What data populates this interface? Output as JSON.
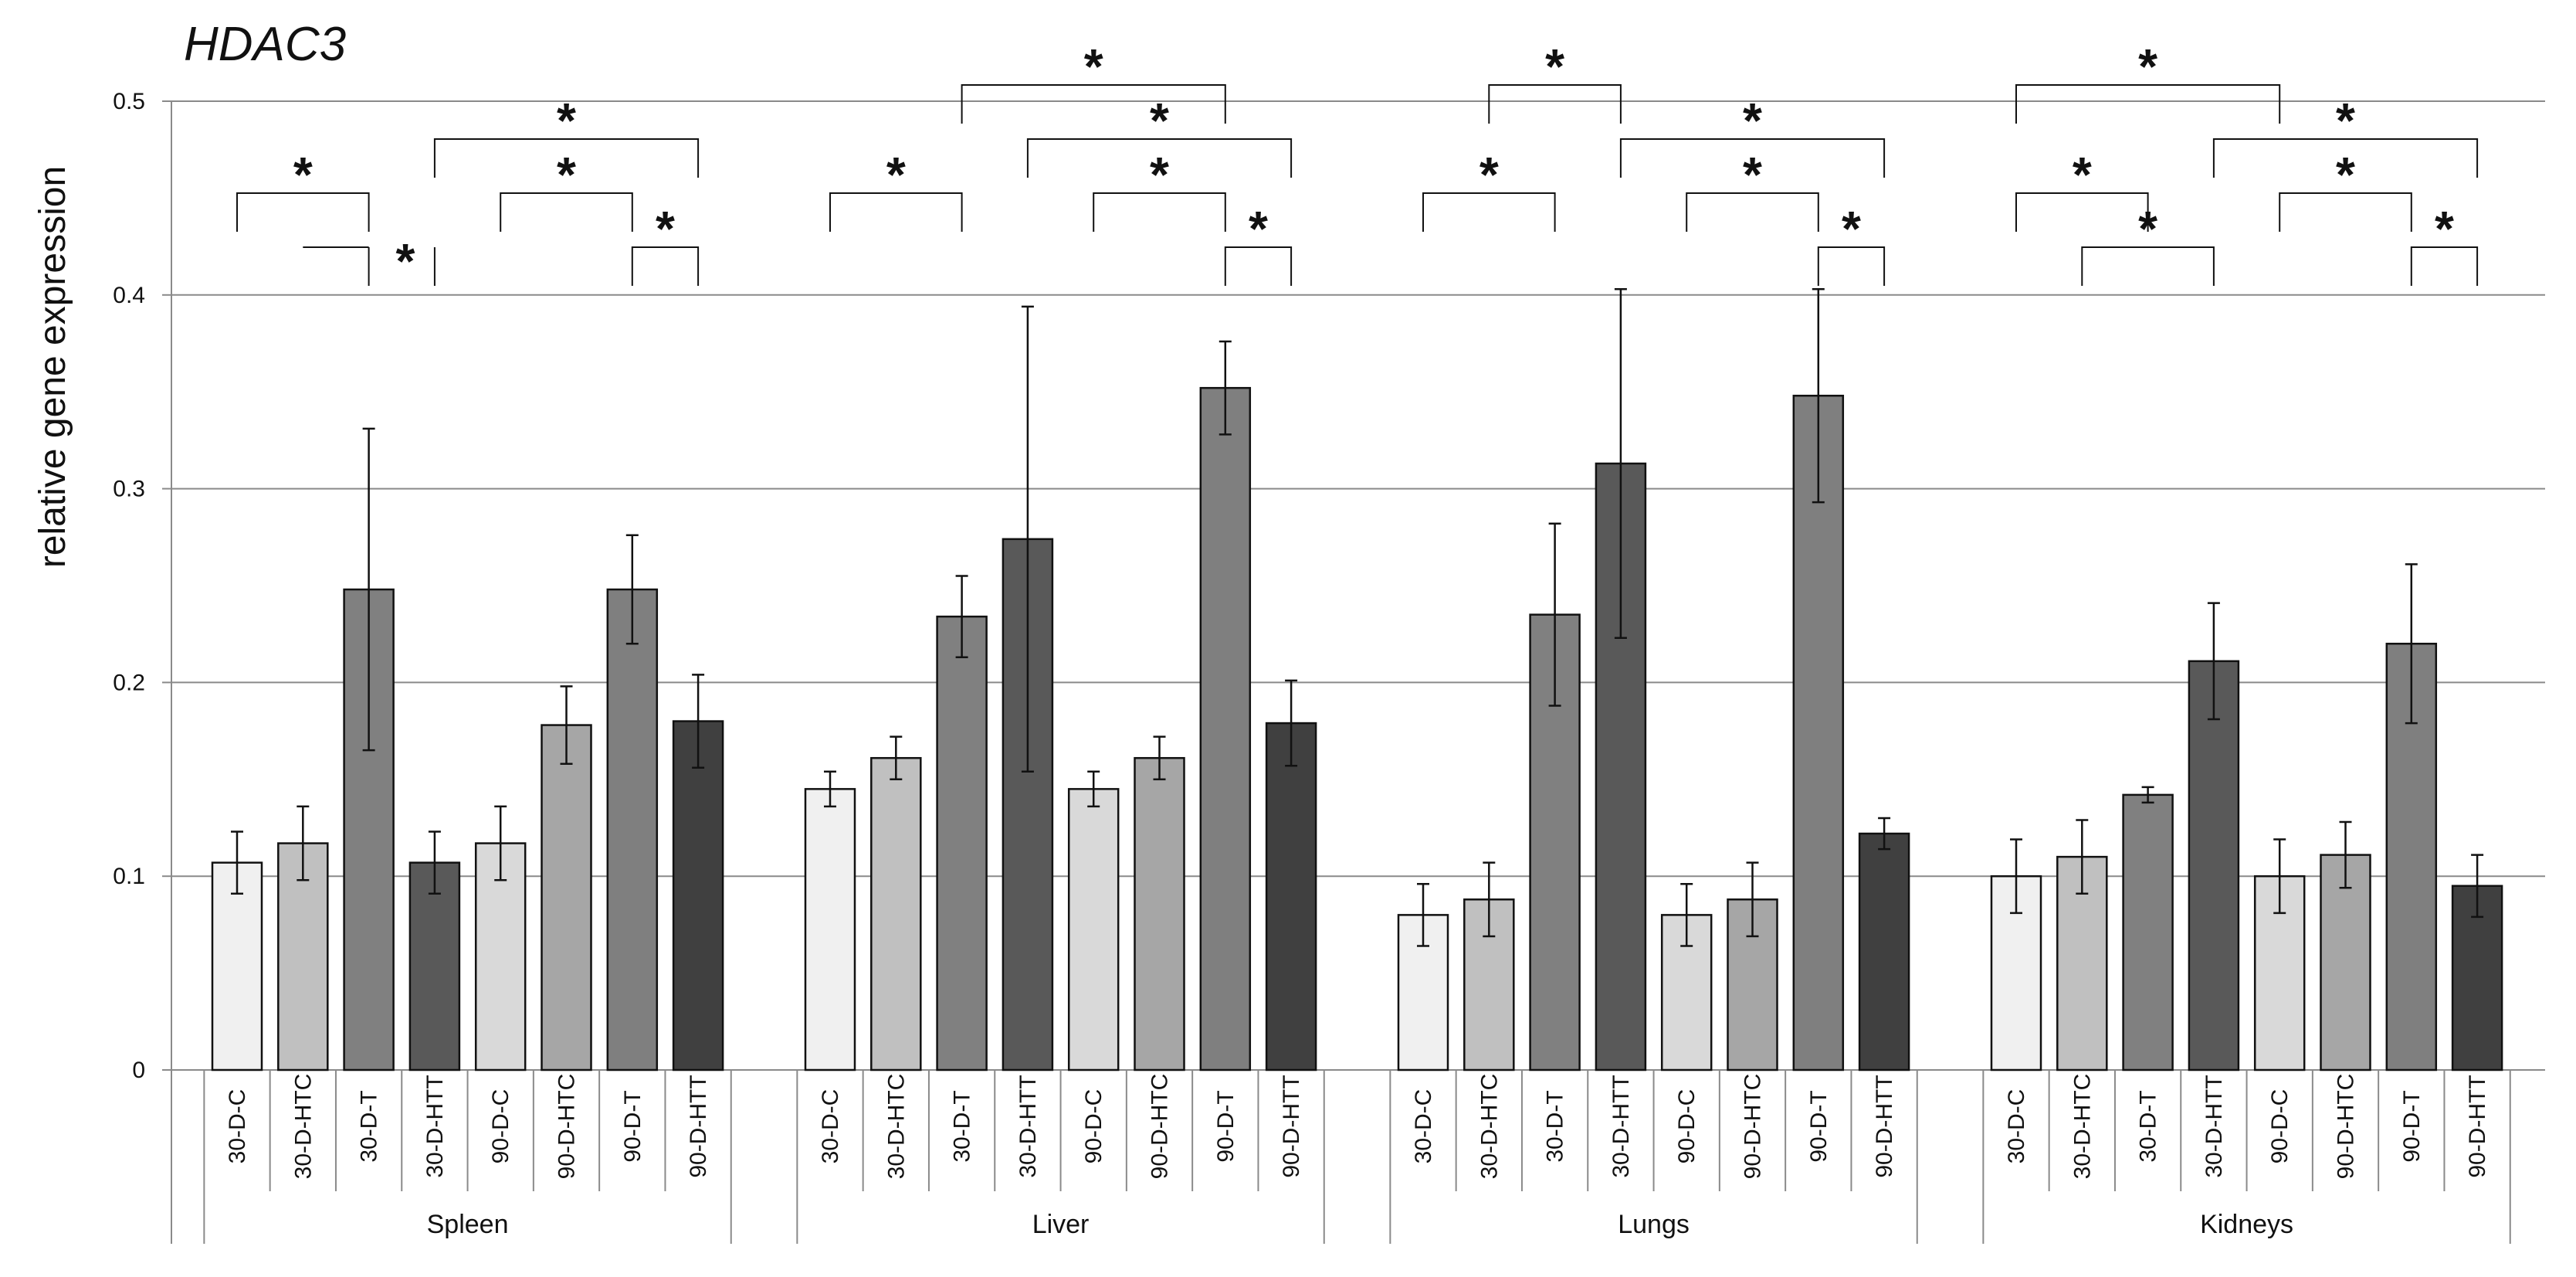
{
  "chart_data": {
    "type": "bar",
    "title": "HDAC3",
    "xlabel": "",
    "ylabel": "relative  gene  expression",
    "ylim": [
      0,
      0.5
    ],
    "yticks": [
      "0",
      "0.1",
      "0.2",
      "0.3",
      "0.4",
      "0.5"
    ],
    "ytick_values": [
      0,
      0.1,
      0.2,
      0.3,
      0.4,
      0.5
    ],
    "gridlines": "horizontal",
    "categories": [
      "30-D-C",
      "30-D-HTC",
      "30-D-T",
      "30-D-HTT",
      "90-D-C",
      "90-D-HTC",
      "90-D-T",
      "90-D-HTT"
    ],
    "bar_colors": [
      "#f0f0f0",
      "#c0c0c0",
      "#808080",
      "#595959",
      "#d9d9d9",
      "#a6a6a6",
      "#7f7f7f",
      "#404040"
    ],
    "groups": [
      {
        "name": "Spleen",
        "values": [
          0.107,
          0.117,
          0.248,
          0.107,
          0.117,
          0.178,
          0.248,
          0.18
        ],
        "errors": [
          0.016,
          0.019,
          0.083,
          0.016,
          0.019,
          0.02,
          0.028,
          0.024
        ],
        "significance": [
          {
            "from": 0,
            "to": 2,
            "label": "*",
            "level": 1
          },
          {
            "from": 1,
            "to": 2,
            "to_only": true,
            "label": "",
            "level": 0
          },
          {
            "from": 3,
            "to": 3,
            "label": "*",
            "level": 0
          },
          {
            "from": 4,
            "to": 6,
            "label": "*",
            "level": 1
          },
          {
            "from": 6,
            "to": 7,
            "label": "*",
            "level": 0
          },
          {
            "from": 3,
            "to": 7,
            "label": "*",
            "level": 2
          }
        ]
      },
      {
        "name": "Liver",
        "values": [
          0.145,
          0.161,
          0.234,
          0.274,
          0.145,
          0.161,
          0.352,
          0.179
        ],
        "errors": [
          0.009,
          0.011,
          0.021,
          0.12,
          0.009,
          0.011,
          0.024,
          0.022
        ],
        "significance": [
          {
            "from": 0,
            "to": 2,
            "label": "*",
            "level": 1
          },
          {
            "from": 4,
            "to": 6,
            "label": "*",
            "level": 1
          },
          {
            "from": 6,
            "to": 7,
            "label": "*",
            "level": 0
          },
          {
            "from": 3,
            "to": 7,
            "label": "*",
            "level": 2
          },
          {
            "from": 2,
            "to": 6,
            "label": "*",
            "level": 3
          }
        ]
      },
      {
        "name": "Lungs",
        "values": [
          0.08,
          0.088,
          0.235,
          0.313,
          0.08,
          0.088,
          0.348,
          0.122
        ],
        "errors": [
          0.016,
          0.019,
          0.047,
          0.09,
          0.016,
          0.019,
          0.055,
          0.008
        ],
        "significance": [
          {
            "from": 0,
            "to": 2,
            "label": "*",
            "level": 1
          },
          {
            "from": 4,
            "to": 6,
            "label": "*",
            "level": 1
          },
          {
            "from": 6,
            "to": 7,
            "label": "*",
            "level": 0
          },
          {
            "from": 3,
            "to": 7,
            "label": "*",
            "level": 2
          },
          {
            "from": 1,
            "to": 3,
            "label": "*",
            "level": 3
          }
        ]
      },
      {
        "name": "Kidneys",
        "values": [
          0.1,
          0.11,
          0.142,
          0.211,
          0.1,
          0.111,
          0.22,
          0.095
        ],
        "errors": [
          0.019,
          0.019,
          0.004,
          0.03,
          0.019,
          0.017,
          0.041,
          0.016
        ],
        "significance": [
          {
            "from": 0,
            "to": 2,
            "label": "*",
            "level": 1
          },
          {
            "from": 1,
            "to": 3,
            "label": "*",
            "level": 0
          },
          {
            "from": 4,
            "to": 6,
            "label": "*",
            "level": 1
          },
          {
            "from": 6,
            "to": 7,
            "label": "*",
            "level": 0
          },
          {
            "from": 3,
            "to": 7,
            "label": "*",
            "level": 2
          },
          {
            "from": 0,
            "to": 4,
            "label": "*",
            "level": 3
          }
        ]
      }
    ]
  }
}
